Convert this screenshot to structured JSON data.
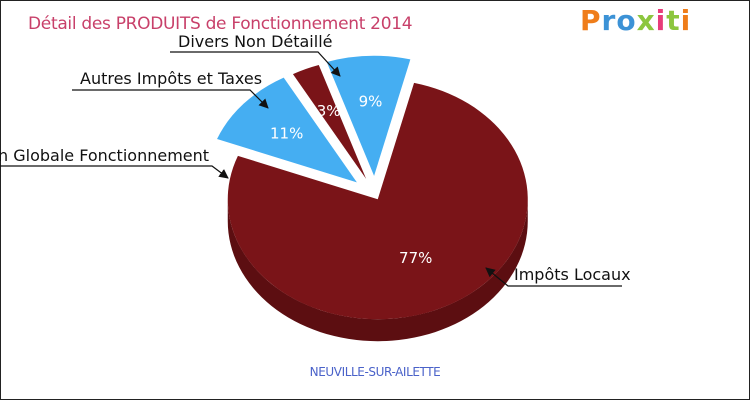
{
  "title": "Détail des PRODUITS de Fonctionnement 2014",
  "logo": "Proxiti",
  "logo_colors": [
    "#ef7d1a",
    "#3c92d6",
    "#3c92d6",
    "#8cc63e",
    "#e73d7a",
    "#8cc63e",
    "#ef7d1a"
  ],
  "subtitle": "NEUVILLE-SUR-AILETTE",
  "colors": {
    "title": "#c8406a",
    "dark_red": "#7a1418",
    "blue": "#45aef2",
    "subtitle": "#4a62c9"
  },
  "chart_data": {
    "type": "pie",
    "title": "Détail des PRODUITS de Fonctionnement 2014",
    "slices": [
      {
        "label": "Impôts Locaux",
        "value": 77,
        "pct_label": "77%",
        "color": "#7a1418"
      },
      {
        "label": "Dotation Globale Fonctionnement",
        "display_label": "n Globale Fonctionnement",
        "value": 11,
        "pct_label": "11%",
        "color": "#45aef2"
      },
      {
        "label": "Autres Impôts et Taxes",
        "value": 3,
        "pct_label": "3%",
        "color": "#7a1418"
      },
      {
        "label": "Divers Non Détaillé",
        "value": 9,
        "pct_label": "9%",
        "color": "#45aef2"
      }
    ]
  }
}
